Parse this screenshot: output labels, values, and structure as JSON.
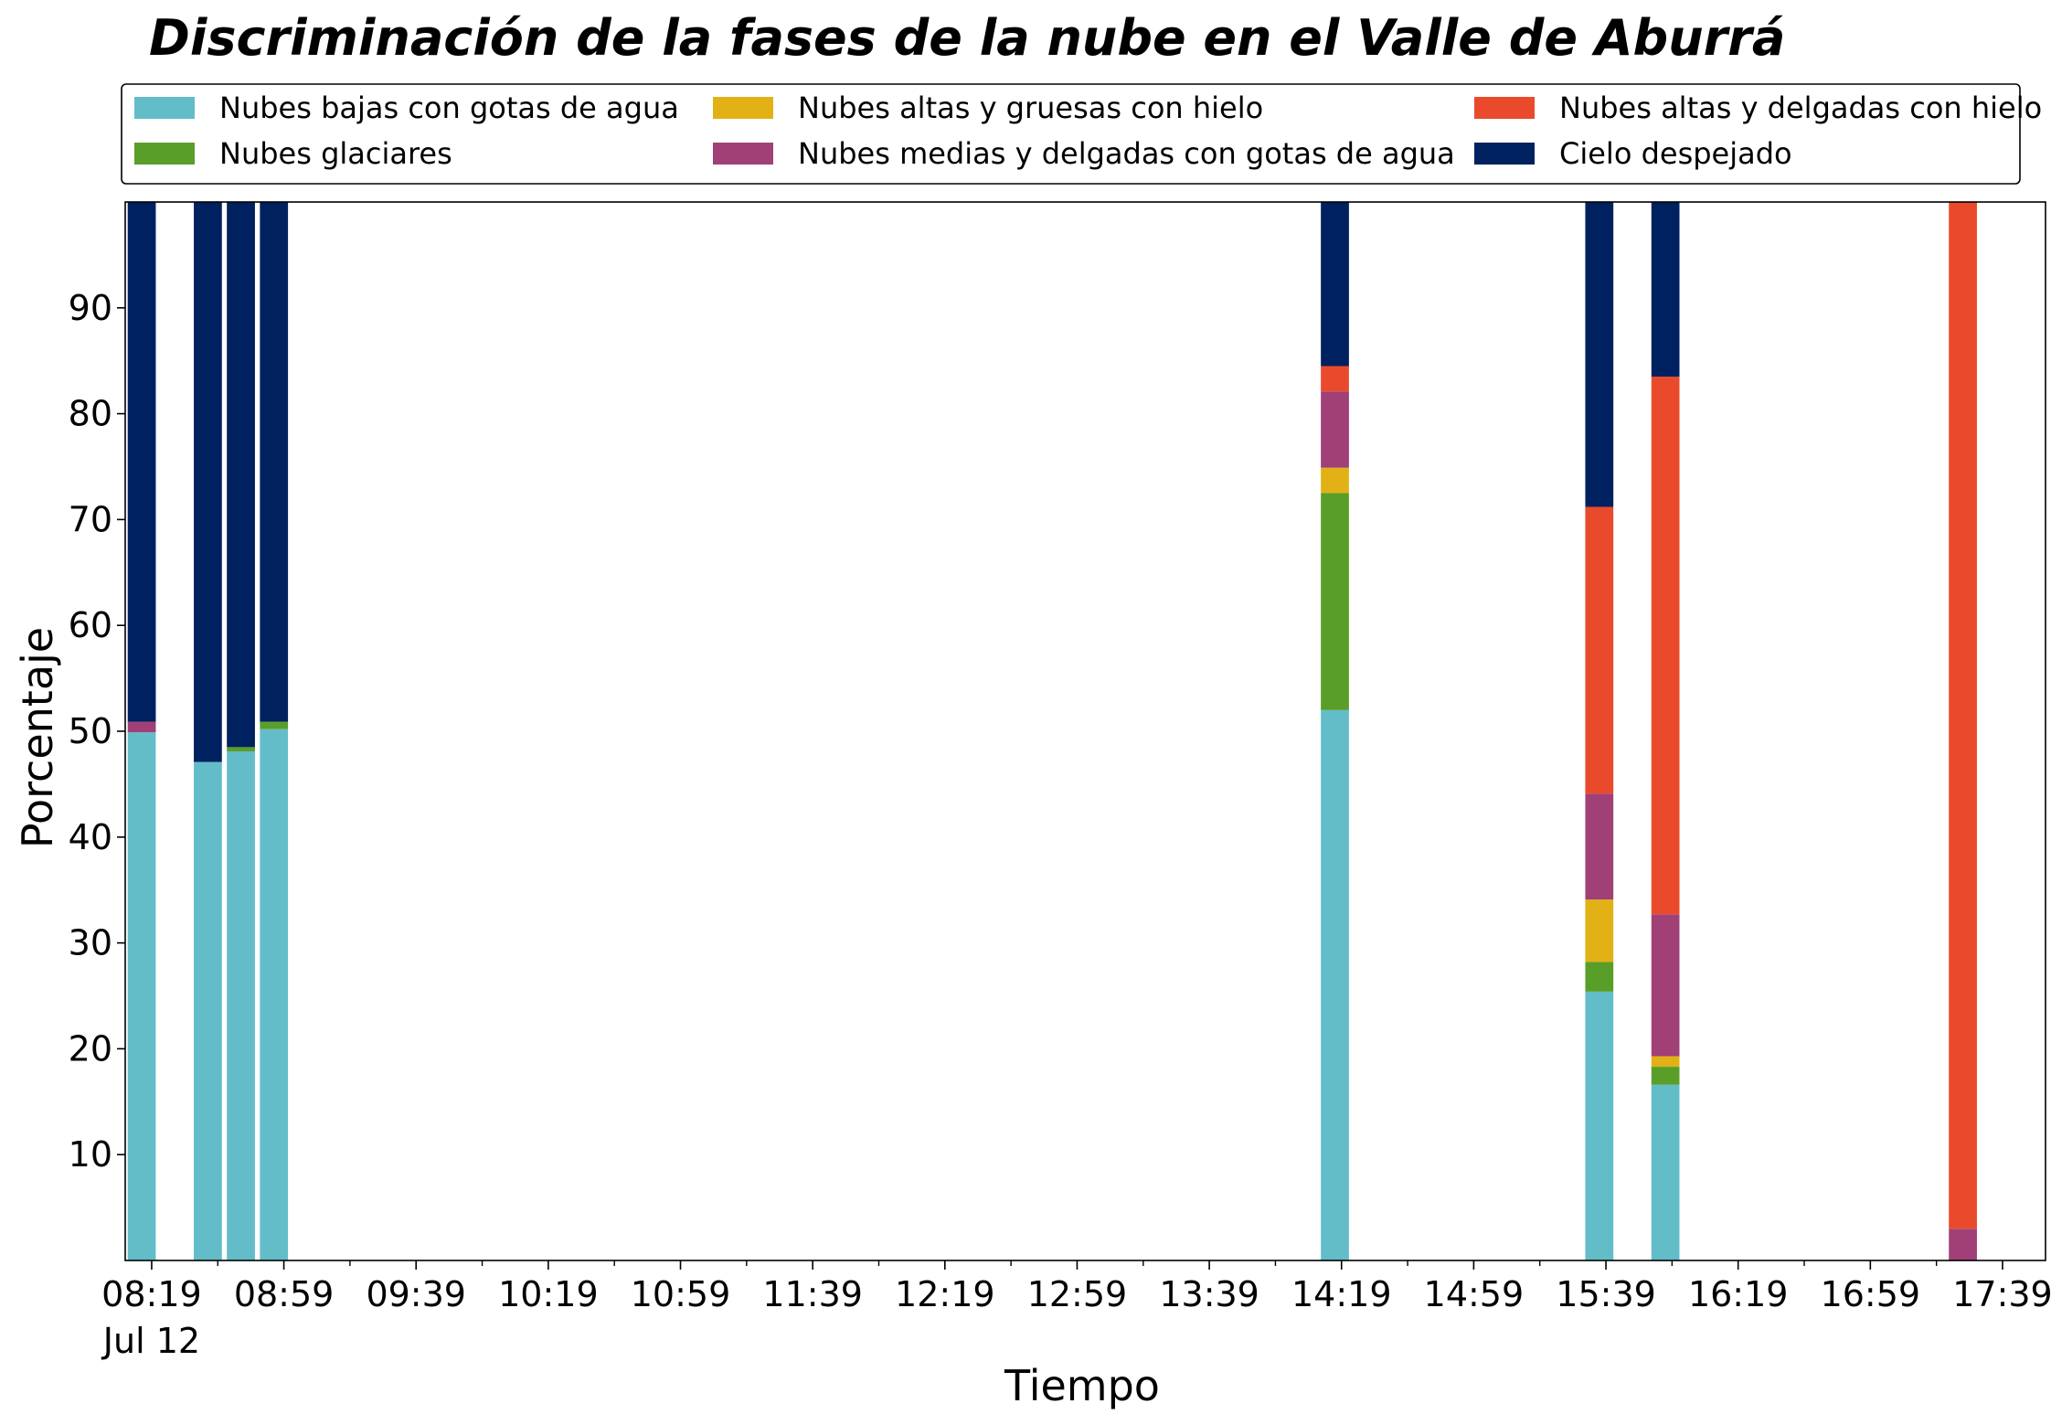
{
  "chart_data": {
    "type": "bar",
    "stacked": true,
    "title": "Discriminación de la fases de la nube en el Valle de Aburrá",
    "xlabel": "Tiempo",
    "ylabel": "Porcentaje",
    "ylim": [
      0,
      100
    ],
    "yticks": [
      10,
      20,
      30,
      40,
      50,
      60,
      70,
      80,
      90
    ],
    "x_range_minutes": [
      491,
      1072
    ],
    "xticks": [
      {
        "minute": 499,
        "label": "08:19",
        "sublabel": "Jul 12"
      },
      {
        "minute": 539,
        "label": "08:59"
      },
      {
        "minute": 579,
        "label": "09:39"
      },
      {
        "minute": 619,
        "label": "10:19"
      },
      {
        "minute": 659,
        "label": "10:59"
      },
      {
        "minute": 699,
        "label": "11:39"
      },
      {
        "minute": 739,
        "label": "12:19"
      },
      {
        "minute": 779,
        "label": "12:59"
      },
      {
        "minute": 819,
        "label": "13:39"
      },
      {
        "minute": 859,
        "label": "14:19"
      },
      {
        "minute": 899,
        "label": "14:59"
      },
      {
        "minute": 939,
        "label": "15:39"
      },
      {
        "minute": 979,
        "label": "16:19"
      },
      {
        "minute": 1019,
        "label": "16:59"
      },
      {
        "minute": 1059,
        "label": "17:39"
      }
    ],
    "bar_width_minutes": 8.5,
    "x": [
      496,
      516,
      526,
      536,
      857,
      937,
      957,
      1047
    ],
    "legend_position": "top",
    "series": [
      {
        "name": "Nubes bajas con gotas de agua",
        "color": "#63bdc9",
        "values": [
          49.9,
          47.1,
          48.1,
          50.2,
          52.0,
          25.4,
          16.6,
          0
        ]
      },
      {
        "name": "Nubes glaciares",
        "color": "#5a9e2a",
        "values": [
          0,
          0,
          0.4,
          0.7,
          20.5,
          2.8,
          1.7,
          0
        ]
      },
      {
        "name": "Nubes altas y gruesas con hielo",
        "color": "#e2b116",
        "values": [
          0,
          0,
          0,
          0,
          2.4,
          5.9,
          1.0,
          0
        ]
      },
      {
        "name": "Nubes medias y delgadas con gotas de agua",
        "color": "#a04077",
        "values": [
          1.0,
          0,
          0,
          0,
          7.2,
          10.0,
          13.4,
          3.0
        ]
      },
      {
        "name": "Nubes altas y delgadas con hielo",
        "color": "#ea4a2c",
        "values": [
          0,
          0,
          0,
          0,
          2.4,
          27.1,
          50.8,
          97.0
        ]
      },
      {
        "name": "Cielo despejado",
        "color": "#00215f",
        "values": [
          49.1,
          52.9,
          51.5,
          49.1,
          15.5,
          28.8,
          16.5,
          0
        ]
      }
    ]
  }
}
